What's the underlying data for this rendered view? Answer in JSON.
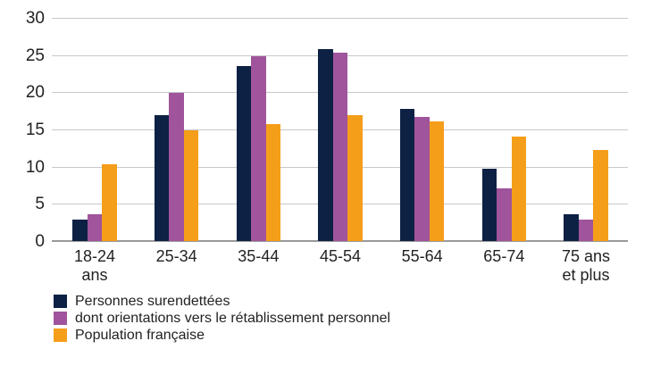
{
  "page": {
    "background": "#ffffff",
    "text_color": "#222222"
  },
  "chart_data": {
    "type": "bar",
    "categories": [
      "18-24\nans",
      "25-34",
      "35-44",
      "45-54",
      "55-64",
      "65-74",
      "75 ans\net plus"
    ],
    "series": [
      {
        "name": "Personnes surendettées",
        "color": "#0d2144",
        "values": [
          2.9,
          16.9,
          23.5,
          25.8,
          17.8,
          9.7,
          3.6
        ]
      },
      {
        "name": "dont orientations vers le rétablissement personnel",
        "color": "#a0549b",
        "values": [
          3.6,
          19.9,
          24.8,
          25.3,
          16.7,
          7.1,
          2.9
        ]
      },
      {
        "name": "Population française",
        "color": "#f59e19",
        "values": [
          10.3,
          14.9,
          15.7,
          16.9,
          16.1,
          14.1,
          12.3
        ]
      }
    ],
    "ylim": [
      0,
      30
    ],
    "yticks": [
      0,
      5,
      10,
      15,
      20,
      25,
      30
    ],
    "grid": true,
    "grid_color": "#c8c8c8",
    "axis_line_color": "#999999",
    "legend_position": "bottom-left"
  }
}
